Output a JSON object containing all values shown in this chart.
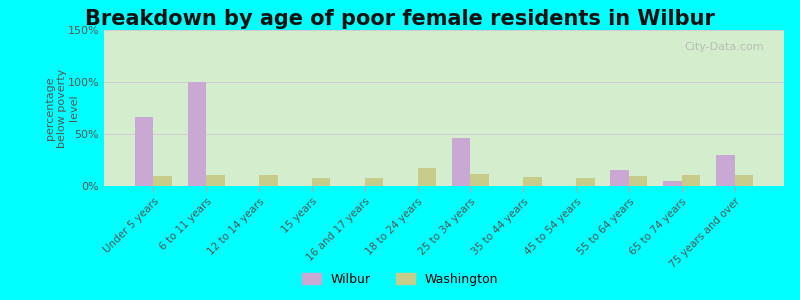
{
  "title": "Breakdown by age of poor female residents in Wilbur",
  "categories": [
    "Under 5 years",
    "6 to 11 years",
    "12 to 14 years",
    "15 years",
    "16 and 17 years",
    "18 to 24 years",
    "25 to 34 years",
    "35 to 44 years",
    "45 to 54 years",
    "55 to 64 years",
    "65 to 74 years",
    "75 years and over"
  ],
  "wilbur_values": [
    66,
    100,
    0,
    0,
    0,
    0,
    46,
    0,
    0,
    15,
    5,
    30
  ],
  "washington_values": [
    10,
    11,
    11,
    8,
    8,
    17,
    12,
    9,
    8,
    10,
    11,
    11
  ],
  "wilbur_color": "#c9a8d4",
  "washington_color": "#c8cc8a",
  "ylabel": "percentage\nbelow poverty\nlevel",
  "ylim": [
    0,
    150
  ],
  "yticks": [
    0,
    50,
    100,
    150
  ],
  "ytick_labels": [
    "0%",
    "50%",
    "100%",
    "150%"
  ],
  "background_color": "#d4edcc",
  "outer_background": "#00ffff",
  "legend_wilbur": "Wilbur",
  "legend_washington": "Washington",
  "title_fontsize": 15,
  "watermark": "City-Data.com"
}
